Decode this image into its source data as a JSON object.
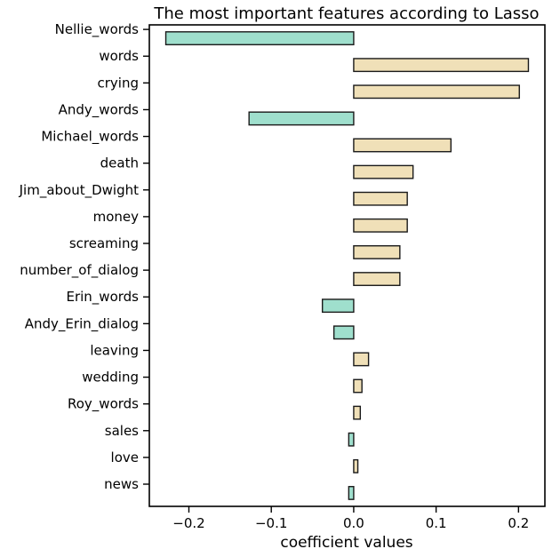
{
  "chart_data": {
    "type": "bar",
    "orientation": "horizontal",
    "title": "The most important features according to Lasso",
    "xlabel": "coefficient values",
    "ylabel": "",
    "xlim": [
      -0.248,
      0.232
    ],
    "xticks": [
      -0.2,
      -0.1,
      0.0,
      0.1,
      0.2
    ],
    "xtick_labels": [
      "−0.2",
      "−0.1",
      "0.0",
      "0.1",
      "0.2"
    ],
    "grid": false,
    "categories": [
      "Nellie_words",
      "words",
      "crying",
      "Andy_words",
      "Michael_words",
      "death",
      "Jim_about_Dwight",
      "money",
      "screaming",
      "number_of_dialog",
      "Erin_words",
      "Andy_Erin_dialog",
      "leaving",
      "wedding",
      "Roy_words",
      "sales",
      "love",
      "news"
    ],
    "values": [
      -0.228,
      0.212,
      0.201,
      -0.127,
      0.118,
      0.072,
      0.065,
      0.065,
      0.056,
      0.056,
      -0.038,
      -0.024,
      0.018,
      0.01,
      0.008,
      -0.006,
      0.005,
      -0.006
    ],
    "colors": {
      "negative": "#9fdfcd",
      "positive": "#f0e0b8",
      "edge": "#1a1a1a"
    }
  }
}
